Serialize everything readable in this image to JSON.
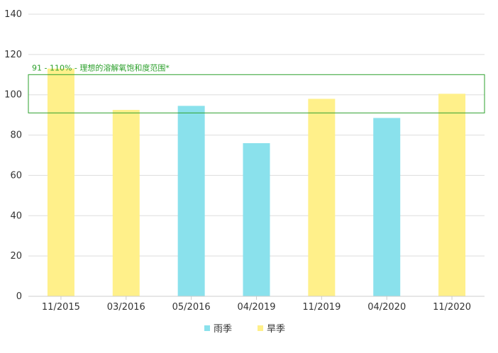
{
  "chart_data": {
    "type": "bar",
    "categories": [
      "11/2015",
      "03/2016",
      "05/2016",
      "04/2019",
      "11/2019",
      "04/2020",
      "11/2020"
    ],
    "values": [
      113,
      92.5,
      94.5,
      76,
      98,
      88.5,
      100.5
    ],
    "season": [
      "旱季",
      "旱季",
      "雨季",
      "雨季",
      "旱季",
      "雨季",
      "旱季"
    ],
    "ylim": [
      0,
      140
    ],
    "yticks": [
      0,
      20,
      40,
      60,
      80,
      100,
      120,
      140
    ],
    "grid": true,
    "band": {
      "from": 91,
      "to": 110,
      "label": "91 - 110% - 理想的溶解氧饱和度范围*",
      "color": "#2ca02c"
    },
    "legend": {
      "position": "bottom",
      "entries": [
        {
          "name": "雨季",
          "color": "#8ae1ec"
        },
        {
          "name": "旱季",
          "color": "#fff08a"
        }
      ]
    }
  }
}
